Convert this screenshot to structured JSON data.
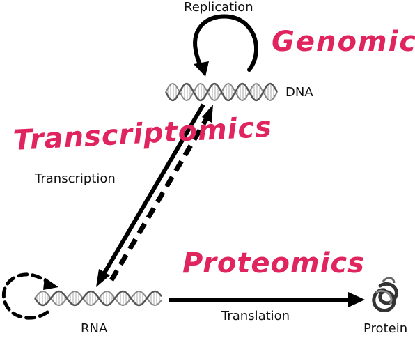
{
  "diagram": {
    "title": "",
    "nodes": {
      "dna": "DNA",
      "rna": "RNA",
      "protein": "Protein"
    },
    "processes": {
      "replication": "Replication",
      "transcription": "Transcription",
      "translation": "Translation"
    },
    "annotations": {
      "genomics": "Genomics",
      "transcriptomics": "Transcriptomics",
      "proteomics": "Proteomics"
    },
    "colors": {
      "annotation": "#e0245e",
      "arrow": "#000000",
      "helix": "#888888"
    },
    "icons": {
      "dna": "dna-double-helix-icon",
      "rna": "rna-helix-icon",
      "protein": "protein-structure-icon"
    }
  }
}
